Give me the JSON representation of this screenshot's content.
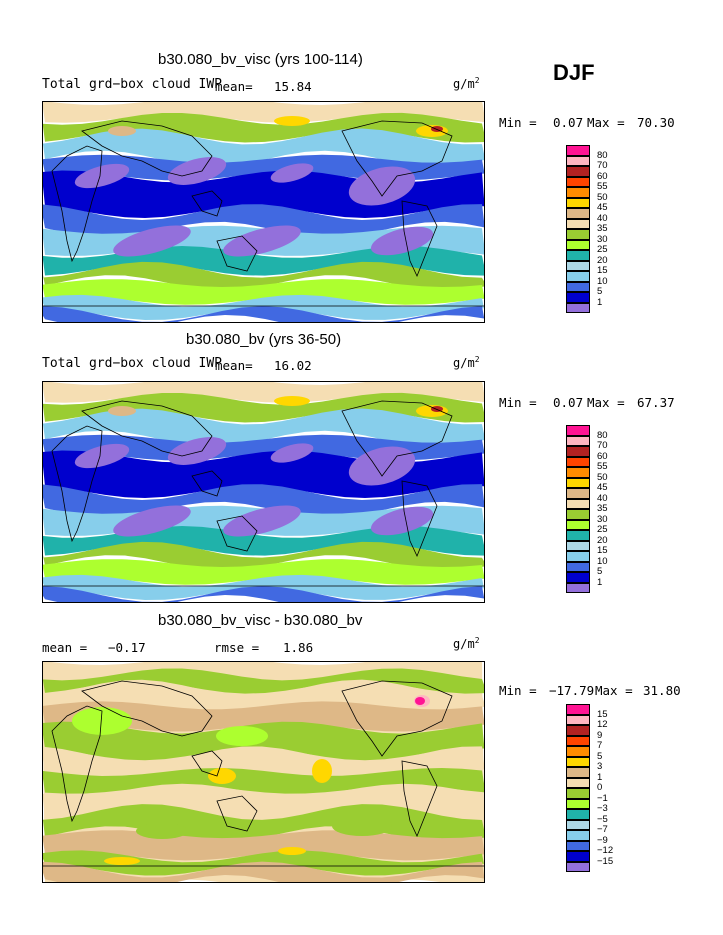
{
  "season": "DJF",
  "unit": "g/m",
  "unit_exp": "2",
  "panels": [
    {
      "title": "b30.080_bv_visc (yrs 100-114)",
      "variable": "Total grd−box cloud IWP",
      "mean_label": "mean=",
      "mean": "15.84",
      "min_label": "Min =",
      "min": "0.07",
      "max_label": "Max =",
      "max": "70.30"
    },
    {
      "title": "b30.080_bv (yrs 36-50)",
      "variable": "Total grd−box cloud IWP",
      "mean_label": "mean=",
      "mean": "16.02",
      "min_label": "Min =",
      "min": "0.07",
      "max_label": "Max =",
      "max": "67.37"
    },
    {
      "title": "b30.080_bv_visc - b30.080_bv",
      "mean_label": "mean =",
      "mean": "−0.17",
      "rmse_label": "rmse =",
      "rmse": "1.86",
      "min_label": "Min =",
      "min": "−17.79",
      "max_label": "Max =",
      "max": "31.80"
    }
  ],
  "chart_data": {
    "type": "heatmap",
    "plots": [
      {
        "title": "b30.080_bv_visc (yrs 100-114)",
        "colorbar_levels": [
          "80",
          "70",
          "60",
          "55",
          "50",
          "45",
          "40",
          "35",
          "30",
          "25",
          "20",
          "15",
          "10",
          "5",
          "1"
        ],
        "colorbar_colors": [
          "#ff1493",
          "#ffb6c1",
          "#b22222",
          "#ff4500",
          "#ff8c00",
          "#ffd700",
          "#deb887",
          "#f5deb3",
          "#9acd32",
          "#adff2f",
          "#20b2aa",
          "#add8e6",
          "#87ceeb",
          "#4169e1",
          "#0000cd",
          "#9370db"
        ]
      },
      {
        "title": "b30.080_bv (yrs 36-50)",
        "colorbar_levels": [
          "80",
          "70",
          "60",
          "55",
          "50",
          "45",
          "40",
          "35",
          "30",
          "25",
          "20",
          "15",
          "10",
          "5",
          "1"
        ],
        "colorbar_colors": [
          "#ff1493",
          "#ffb6c1",
          "#b22222",
          "#ff4500",
          "#ff8c00",
          "#ffd700",
          "#deb887",
          "#f5deb3",
          "#9acd32",
          "#adff2f",
          "#20b2aa",
          "#add8e6",
          "#87ceeb",
          "#4169e1",
          "#0000cd",
          "#9370db"
        ]
      },
      {
        "title": "b30.080_bv_visc - b30.080_bv",
        "colorbar_levels": [
          "15",
          "12",
          "9",
          "7",
          "5",
          "3",
          "1",
          "0",
          "−1",
          "−3",
          "−5",
          "−7",
          "−9",
          "−12",
          "−15"
        ],
        "colorbar_colors": [
          "#ff1493",
          "#ffb6c1",
          "#b22222",
          "#ff4500",
          "#ff8c00",
          "#ffd700",
          "#deb887",
          "#f5deb3",
          "#9acd32",
          "#adff2f",
          "#20b2aa",
          "#add8e6",
          "#87ceeb",
          "#4169e1",
          "#0000cd",
          "#9370db"
        ]
      }
    ]
  }
}
